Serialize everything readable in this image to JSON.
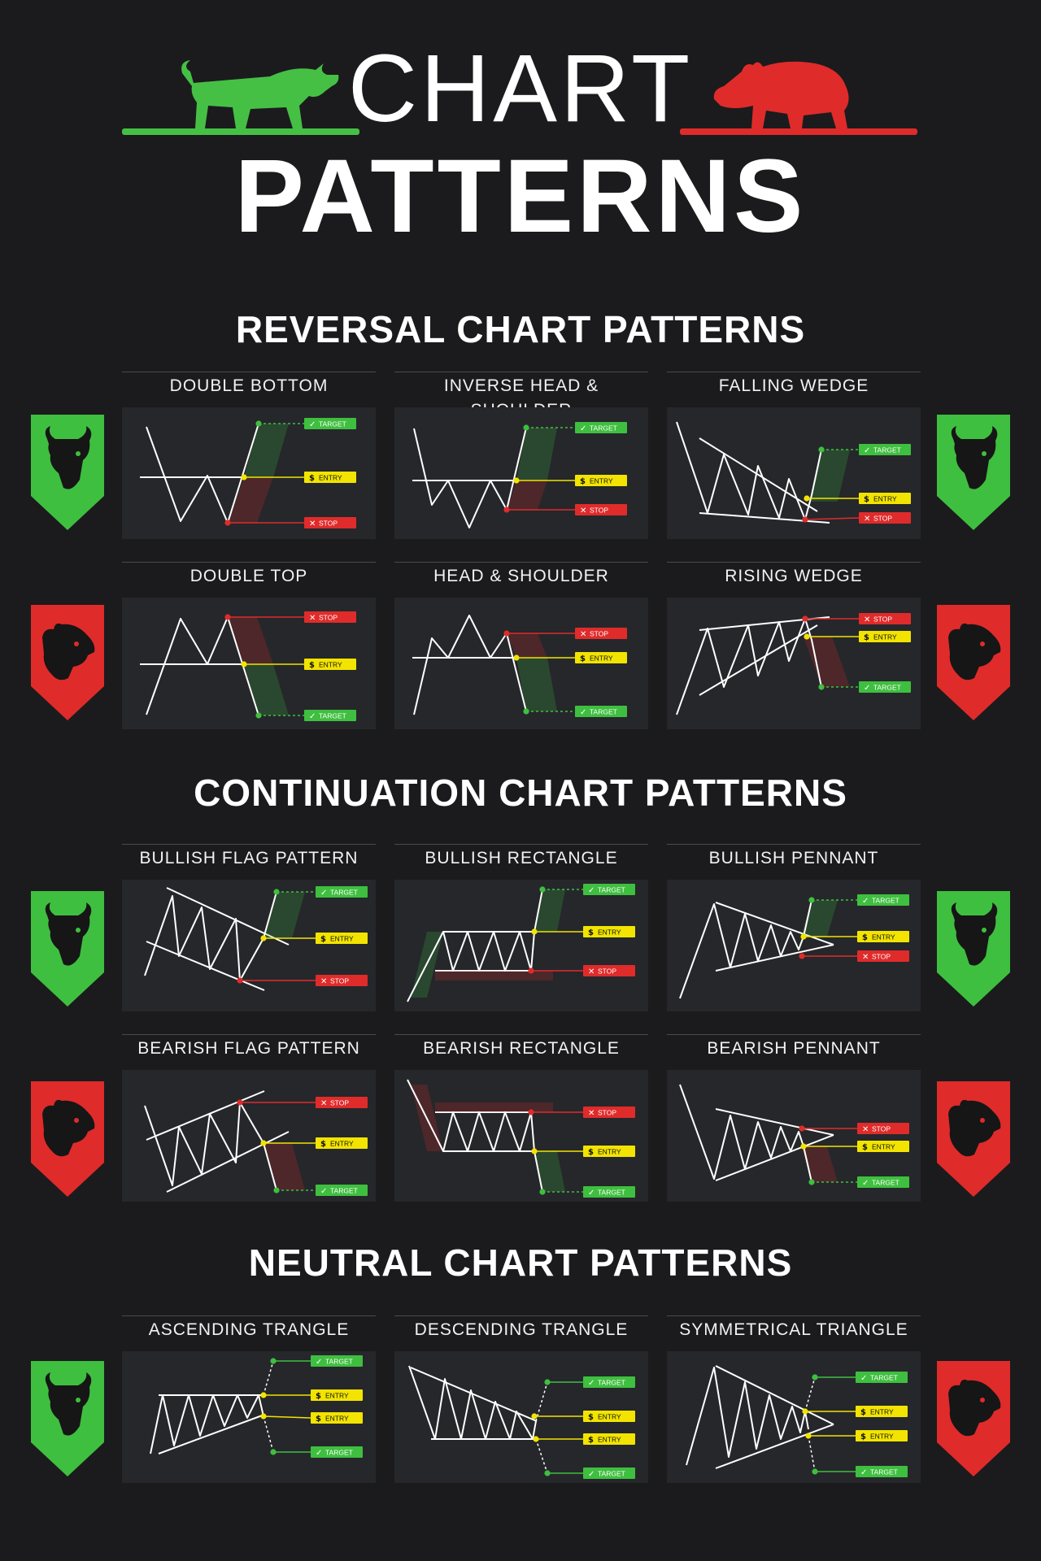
{
  "header": {
    "title_top": "CHART",
    "title_main": "PATTERNS"
  },
  "colors": {
    "bullish": "#3fbf3f",
    "bearish": "#e02b2b",
    "entry": "#f2e400",
    "background": "#1b1b1d",
    "panel": "#25272b"
  },
  "icons": {
    "bull": "bull-icon",
    "bear": "bear-icon"
  },
  "labels": {
    "target": "TARGET",
    "entry": "ENTRY",
    "stop": "STOP"
  },
  "sections": [
    {
      "heading": "REVERSAL CHART PATTERNS",
      "rows": [
        {
          "badge": "bull",
          "patterns": [
            {
              "id": "double-bottom",
              "title": "DOUBLE BOTTOM"
            },
            {
              "id": "inverse-head-shoulder",
              "title": "INVERSE HEAD & SHOULDER"
            },
            {
              "id": "falling-wedge",
              "title": "FALLING WEDGE"
            }
          ]
        },
        {
          "badge": "bear",
          "patterns": [
            {
              "id": "double-top",
              "title": "DOUBLE TOP"
            },
            {
              "id": "head-shoulder",
              "title": "HEAD & SHOULDER"
            },
            {
              "id": "rising-wedge",
              "title": "RISING WEDGE"
            }
          ]
        }
      ]
    },
    {
      "heading": "CONTINUATION CHART PATTERNS",
      "rows": [
        {
          "badge": "bull",
          "patterns": [
            {
              "id": "bullish-flag",
              "title": "BULLISH FLAG PATTERN"
            },
            {
              "id": "bullish-rectangle",
              "title": "BULLISH RECTANGLE"
            },
            {
              "id": "bullish-pennant",
              "title": "BULLISH PENNANT"
            }
          ]
        },
        {
          "badge": "bear",
          "patterns": [
            {
              "id": "bearish-flag",
              "title": "BEARISH FLAG PATTERN"
            },
            {
              "id": "bearish-rectangle",
              "title": "BEARISH RECTANGLE"
            },
            {
              "id": "bearish-pennant",
              "title": "BEARISH PENNANT"
            }
          ]
        }
      ]
    },
    {
      "heading": "NEUTRAL CHART PATTERNS",
      "rows": [
        {
          "badge_left": "bull",
          "badge_right": "bear",
          "patterns": [
            {
              "id": "ascending-triangle",
              "title": "ASCENDING TRANGLE"
            },
            {
              "id": "descending-triangle",
              "title": "DESCENDING TRANGLE"
            },
            {
              "id": "symmetrical-triangle",
              "title": "SYMMETRICAL TRIANGLE"
            }
          ]
        }
      ]
    }
  ]
}
